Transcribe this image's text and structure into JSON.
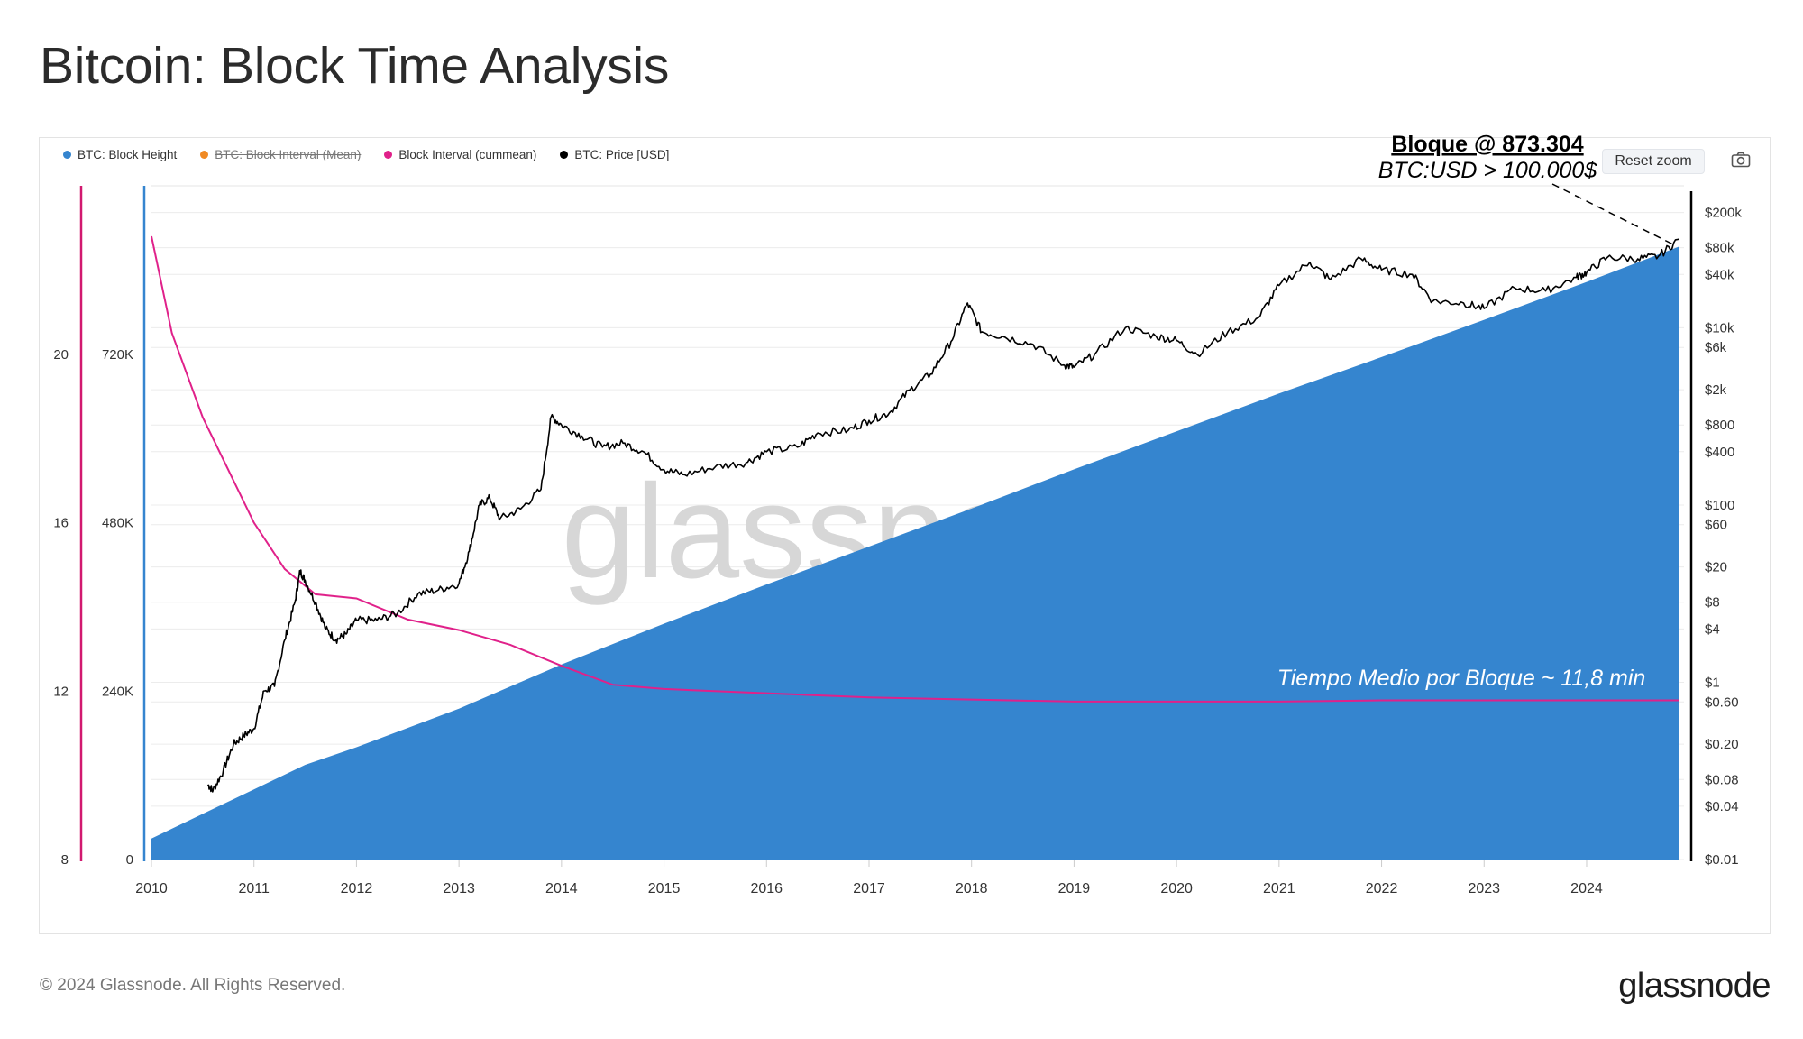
{
  "page": {
    "title": "Bitcoin: Block Time Analysis",
    "copyright": "© 2024 Glassnode. All Rights Reserved.",
    "brand": "glassnode",
    "watermark": "glassnode",
    "reset_zoom_label": "Reset zoom",
    "camera_icon": "camera-icon"
  },
  "colors": {
    "block_height": "#3585cf",
    "block_interval_mean": "#f08a24",
    "block_interval_cummean": "#e0218a",
    "price": "#000000",
    "axis_interval": "#d1186f",
    "axis_height": "#3585cf"
  },
  "chart_data": {
    "type": "area",
    "title": "Bitcoin: Block Time Analysis",
    "x_range": [
      2010.0,
      2024.95
    ],
    "x_ticks": [
      "2010",
      "2011",
      "2012",
      "2013",
      "2014",
      "2015",
      "2016",
      "2017",
      "2018",
      "2019",
      "2020",
      "2021",
      "2022",
      "2023",
      "2024"
    ],
    "legend": [
      {
        "name": "BTC: Block Height",
        "color": "#3585cf",
        "hidden": false
      },
      {
        "name": "BTC: Block Interval (Mean)",
        "color": "#f08a24",
        "hidden": true
      },
      {
        "name": "Block Interval (cummean)",
        "color": "#e0218a",
        "hidden": false
      },
      {
        "name": "BTC: Price [USD]",
        "color": "#000000",
        "hidden": false
      }
    ],
    "axes": {
      "interval": {
        "ticks": [
          "8",
          "12",
          "16",
          "20"
        ],
        "range": [
          8,
          24
        ]
      },
      "height": {
        "ticks": [
          "0",
          "240K",
          "480K",
          "720K"
        ],
        "range": [
          0,
          960000
        ]
      },
      "price": {
        "scale": "log",
        "range": [
          0.01,
          400000
        ],
        "ticks": [
          "$200k",
          "$80k",
          "$40k",
          "$10k",
          "$6k",
          "$2k",
          "$800",
          "$400",
          "$100",
          "$60",
          "$20",
          "$8",
          "$4",
          "$1",
          "$0.60",
          "$0.20",
          "$0.08",
          "$0.04",
          "$0.01"
        ]
      }
    },
    "series": [
      {
        "name": "BTC: Block Height",
        "x": [
          2010.0,
          2010.5,
          2011.0,
          2011.5,
          2012.0,
          2013.0,
          2014.0,
          2015.0,
          2016.0,
          2017.0,
          2018.0,
          2019.0,
          2020.0,
          2021.0,
          2022.0,
          2023.0,
          2024.0,
          2024.9
        ],
        "values": [
          30000,
          65000,
          100000,
          135000,
          160000,
          215000,
          278000,
          336000,
          392000,
          446000,
          500000,
          556000,
          610000,
          664000,
          716000,
          769000,
          823000,
          873304
        ]
      },
      {
        "name": "Block Interval (cummean)",
        "x": [
          2010.0,
          2010.2,
          2010.5,
          2010.8,
          2011.0,
          2011.3,
          2011.6,
          2012.0,
          2012.5,
          2013.0,
          2013.5,
          2014.0,
          2014.5,
          2015.0,
          2016.0,
          2017.0,
          2018.0,
          2019.0,
          2020.0,
          2021.0,
          2022.0,
          2023.0,
          2024.0,
          2024.9
        ],
        "values": [
          22.8,
          20.5,
          18.5,
          17.0,
          16.0,
          14.9,
          14.3,
          14.2,
          13.7,
          13.45,
          13.1,
          12.6,
          12.15,
          12.05,
          11.95,
          11.85,
          11.8,
          11.75,
          11.75,
          11.75,
          11.78,
          11.78,
          11.78,
          11.78
        ]
      },
      {
        "name": "BTC: Price [USD]",
        "x": [
          2010.55,
          2010.6,
          2010.7,
          2010.8,
          2010.9,
          2011.0,
          2011.1,
          2011.2,
          2011.3,
          2011.4,
          2011.45,
          2011.5,
          2011.6,
          2011.7,
          2011.8,
          2011.9,
          2012.0,
          2012.2,
          2012.4,
          2012.6,
          2012.8,
          2013.0,
          2013.1,
          2013.2,
          2013.3,
          2013.4,
          2013.6,
          2013.8,
          2013.9,
          2014.0,
          2014.2,
          2014.4,
          2014.6,
          2014.8,
          2015.0,
          2015.2,
          2015.5,
          2015.8,
          2016.0,
          2016.3,
          2016.5,
          2016.8,
          2017.0,
          2017.2,
          2017.4,
          2017.6,
          2017.8,
          2017.96,
          2018.1,
          2018.3,
          2018.6,
          2018.9,
          2019.0,
          2019.2,
          2019.5,
          2019.8,
          2020.0,
          2020.2,
          2020.5,
          2020.8,
          2021.0,
          2021.3,
          2021.5,
          2021.8,
          2022.0,
          2022.3,
          2022.5,
          2022.8,
          2023.0,
          2023.3,
          2023.6,
          2023.9,
          2024.0,
          2024.2,
          2024.5,
          2024.7,
          2024.9
        ],
        "values": [
          0.07,
          0.06,
          0.1,
          0.2,
          0.25,
          0.3,
          0.8,
          0.9,
          3,
          8,
          18,
          14,
          8,
          4,
          3,
          3.5,
          5,
          5,
          6,
          10,
          11,
          13,
          30,
          100,
          120,
          70,
          90,
          150,
          1000,
          800,
          600,
          450,
          500,
          400,
          250,
          220,
          270,
          300,
          400,
          450,
          650,
          700,
          900,
          1100,
          2000,
          3000,
          7000,
          19000,
          9000,
          8000,
          6500,
          3800,
          3600,
          5000,
          10000,
          8000,
          7200,
          5000,
          9000,
          13000,
          30000,
          55000,
          35000,
          60000,
          45000,
          40000,
          20000,
          19000,
          16500,
          28000,
          26000,
          37000,
          42000,
          62000,
          60000,
          64000,
          100000
        ]
      }
    ],
    "annotations": [
      {
        "text": "Bloque @ 873.304",
        "style": "bold underline"
      },
      {
        "text": "BTC:USD > 100.000$",
        "style": "italic"
      },
      {
        "text": "Tiempo Medio por Bloque ~ 11,8 min",
        "style": "italic"
      }
    ]
  }
}
